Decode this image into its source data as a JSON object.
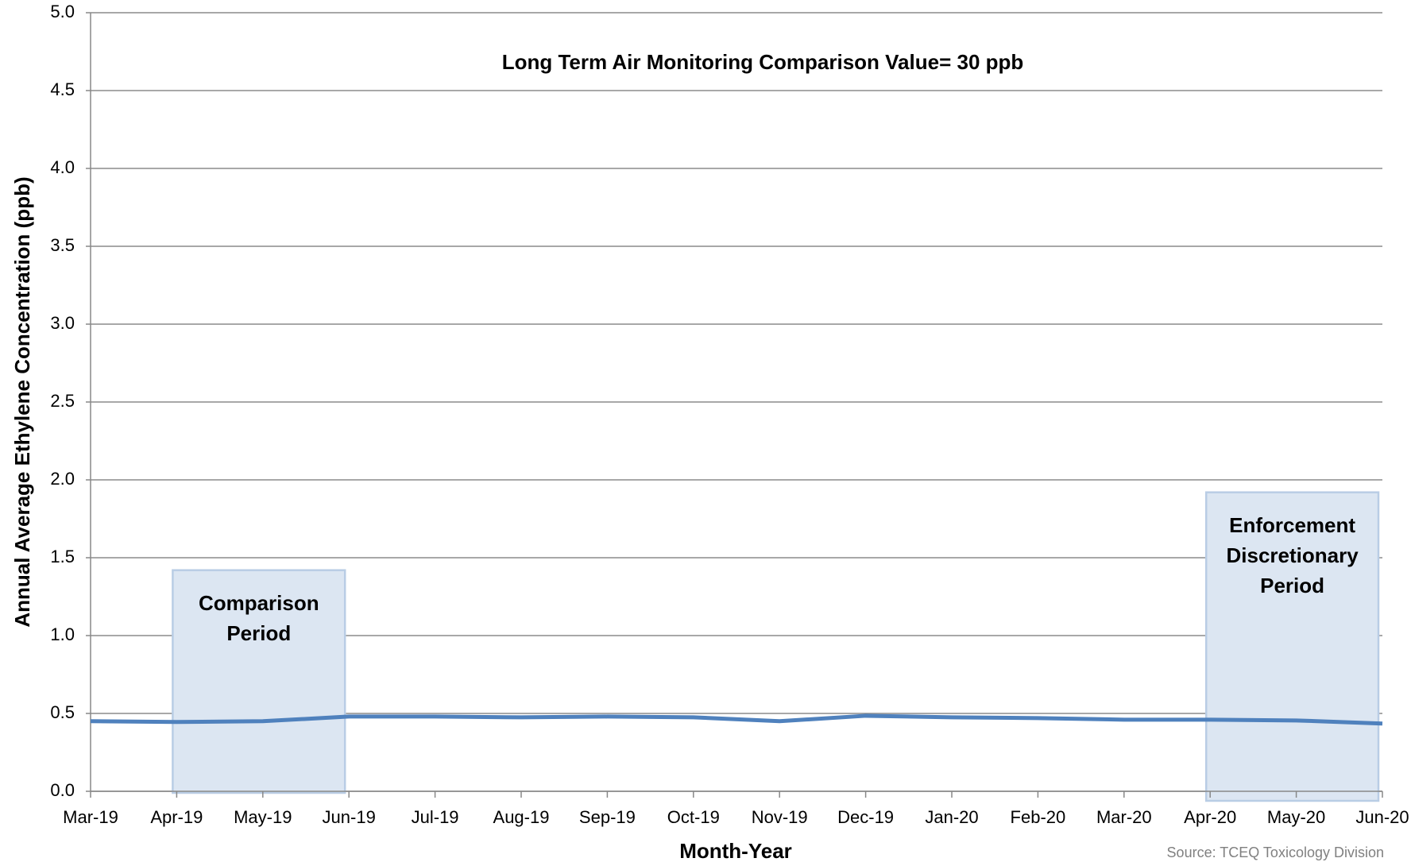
{
  "chart_data": {
    "type": "line",
    "title": "Long Term Air Monitoring Comparison Value= 30 ppb",
    "x_label": "Month-Year",
    "y_label": "Annual Average Ethylene Concentration (ppb)",
    "source": "Source: TCEQ Toxicology Division",
    "categories": [
      "Mar-19",
      "Apr-19",
      "May-19",
      "Jun-19",
      "Jul-19",
      "Aug-19",
      "Sep-19",
      "Oct-19",
      "Nov-19",
      "Dec-19",
      "Jan-20",
      "Feb-20",
      "Mar-20",
      "Apr-20",
      "May-20",
      "Jun-20"
    ],
    "values": [
      0.45,
      0.445,
      0.45,
      0.48,
      0.48,
      0.475,
      0.48,
      0.475,
      0.45,
      0.485,
      0.475,
      0.47,
      0.46,
      0.46,
      0.455,
      0.435
    ],
    "color": "#4f81bd",
    "ylim": [
      0,
      5
    ],
    "yticks": [
      {
        "value": 0,
        "label": "0.0"
      },
      0.5,
      {
        "value": 1,
        "label": "1.0"
      },
      1.5,
      {
        "value": 2,
        "label": "2.0"
      },
      2.5,
      {
        "value": 3,
        "label": "3.0"
      },
      3.5,
      {
        "value": 4,
        "label": "4.0"
      },
      4.5,
      {
        "value": 5,
        "label": "5.0"
      }
    ],
    "grid": true,
    "shaded_periods": [
      {
        "label": "Comparison Period",
        "start": "Apr-19",
        "end": "Jun-19"
      },
      {
        "label": "Enforcement Discretionary Period",
        "start": "Apr-20",
        "end": "Jun-20"
      }
    ]
  }
}
